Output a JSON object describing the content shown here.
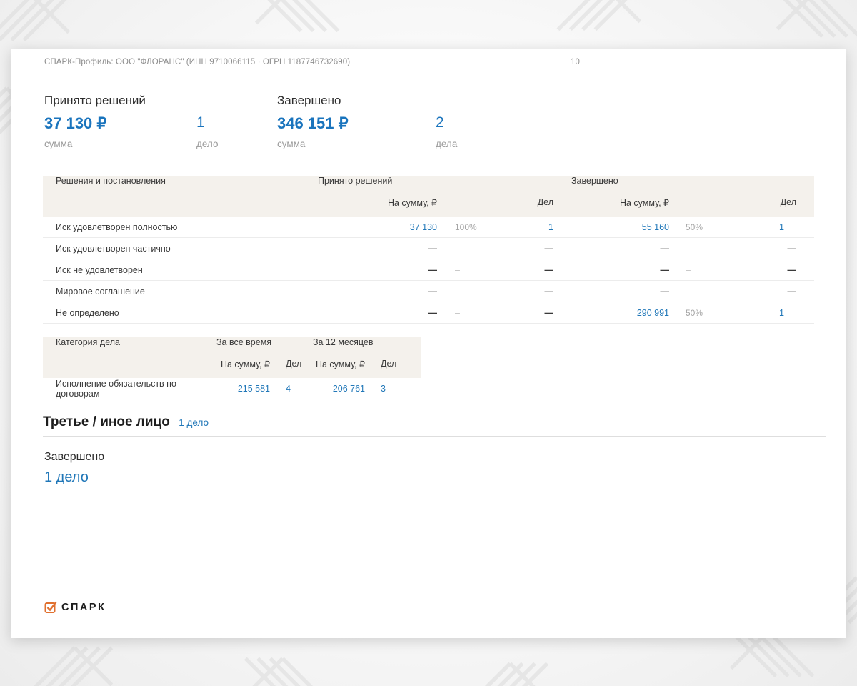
{
  "header": {
    "title": "СПАРК-Профиль: ООО \"ФЛОРАНС\" (ИНН 9710066115 · ОГРН 1187746732690)",
    "page_number": "10"
  },
  "stats": {
    "decided": {
      "title": "Принято решений",
      "amount": "37 130 ₽",
      "amount_label": "сумма",
      "count": "1",
      "count_label": "дело"
    },
    "completed": {
      "title": "Завершено",
      "amount": "346 151 ₽",
      "amount_label": "сумма",
      "count": "2",
      "count_label": "дела"
    }
  },
  "decisions_table": {
    "name_header": "Решения и постановления",
    "groups": [
      "Принято решений",
      "Завершено"
    ],
    "sub_headers": [
      "На сумму, ₽",
      "Дел",
      "На сумму, ₽",
      "Дел"
    ],
    "rows": [
      {
        "label": "Иск удовлетворен полностью",
        "cells": [
          {
            "v": "37 130",
            "k": "lnk"
          },
          {
            "v": "100%",
            "k": "pct"
          },
          {
            "v": "1",
            "k": "lnk"
          },
          {
            "v": "55 160",
            "k": "lnk"
          },
          {
            "v": "50%",
            "k": "pct"
          },
          {
            "v": "1",
            "k": "lnk"
          }
        ]
      },
      {
        "label": "Иск удовлетворен частично",
        "cells": [
          {
            "v": "—",
            "k": "dash"
          },
          {
            "v": "–",
            "k": "dashpct"
          },
          {
            "v": "—",
            "k": "dash"
          },
          {
            "v": "—",
            "k": "dash"
          },
          {
            "v": "–",
            "k": "dashpct"
          },
          {
            "v": "—",
            "k": "dash"
          }
        ]
      },
      {
        "label": "Иск не удовлетворен",
        "cells": [
          {
            "v": "—",
            "k": "dash"
          },
          {
            "v": "–",
            "k": "dashpct"
          },
          {
            "v": "—",
            "k": "dash"
          },
          {
            "v": "—",
            "k": "dash"
          },
          {
            "v": "–",
            "k": "dashpct"
          },
          {
            "v": "—",
            "k": "dash"
          }
        ]
      },
      {
        "label": "Мировое соглашение",
        "cells": [
          {
            "v": "—",
            "k": "dash"
          },
          {
            "v": "–",
            "k": "dashpct"
          },
          {
            "v": "—",
            "k": "dash"
          },
          {
            "v": "—",
            "k": "dash"
          },
          {
            "v": "–",
            "k": "dashpct"
          },
          {
            "v": "—",
            "k": "dash"
          }
        ]
      },
      {
        "label": "Не определено",
        "cells": [
          {
            "v": "—",
            "k": "dash"
          },
          {
            "v": "–",
            "k": "dashpct"
          },
          {
            "v": "—",
            "k": "dash"
          },
          {
            "v": "290 991",
            "k": "lnk"
          },
          {
            "v": "50%",
            "k": "pct"
          },
          {
            "v": "1",
            "k": "lnk"
          }
        ]
      }
    ]
  },
  "category_table": {
    "name_header": "Категория дела",
    "groups": [
      "За все время",
      "За 12 месяцев"
    ],
    "sub_headers": [
      "На сумму, ₽",
      "Дел",
      "На сумму, ₽",
      "Дел"
    ],
    "rows": [
      {
        "label": "Исполнение обязательств по договорам",
        "cells": [
          {
            "v": "215 581",
            "k": "lnk"
          },
          {
            "v": "4",
            "k": "lnk"
          },
          {
            "v": "206 761",
            "k": "lnk"
          },
          {
            "v": "3",
            "k": "lnk"
          }
        ]
      }
    ]
  },
  "third_party": {
    "title": "Третье / иное лицо",
    "count_link": "1 дело",
    "completed_label": "Завершено",
    "completed_count": "1 дело"
  },
  "footer": {
    "logo_text": "СПАРК"
  },
  "colors": {
    "accent_blue": "#2077b8",
    "stat_blue": "#1a74bd",
    "logo_orange": "#e0702f",
    "table_header_bg": "#f4f1ec"
  }
}
